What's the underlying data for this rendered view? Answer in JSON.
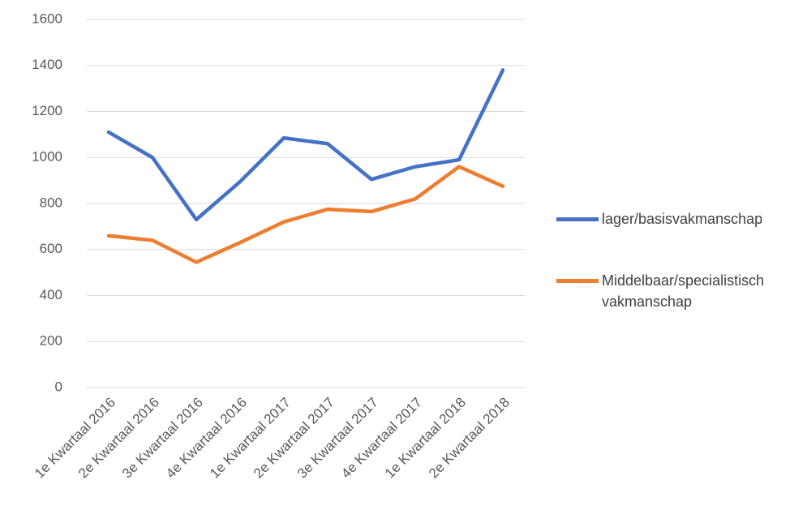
{
  "chart_data": {
    "type": "line",
    "categories": [
      "1e Kwartaal 2016",
      "2e Kwartaal 2016",
      "3e Kwartaal 2016",
      "4e Kwartaal 2016",
      "1e Kwartaal 2017",
      "2e Kwartaal 2017",
      "3e Kwartaal 2017",
      "4e Kwartaal 2017",
      "1e Kwartaal 2018",
      "2e Kwartaal 2018"
    ],
    "series": [
      {
        "name": "lager/basisvakmanschap",
        "color": "#4472c4",
        "values": [
          1110,
          1000,
          730,
          895,
          1085,
          1060,
          905,
          960,
          990,
          1380
        ]
      },
      {
        "name": "Middelbaar/specialistisch vakmanschap",
        "color": "#ed7d31",
        "values": [
          660,
          640,
          545,
          630,
          720,
          775,
          765,
          820,
          960,
          875
        ]
      }
    ],
    "ylim": [
      0,
      1600
    ],
    "yticks": [
      0,
      200,
      400,
      600,
      800,
      1000,
      1200,
      1400,
      1600
    ],
    "grid": true,
    "legend": "right"
  }
}
